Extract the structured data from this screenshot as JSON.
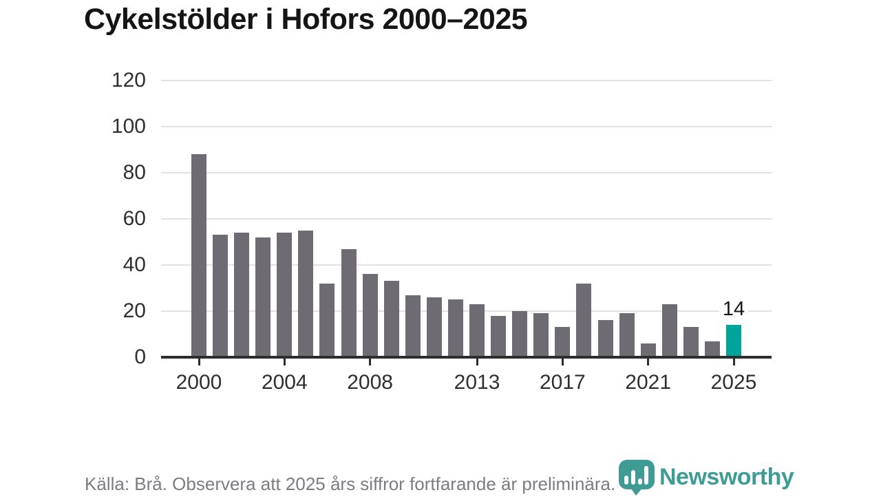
{
  "title": "Cykelstölder i Hofors 2000–2025",
  "footer": {
    "source_note": "Källa: Brå. Observera att 2025 års siffror fortfarande är preliminära."
  },
  "logo": {
    "wordmark": "Newsworthy",
    "icon": "bar-chart-pin-icon",
    "color": "#3E9C95"
  },
  "colors": {
    "bar": "#6E6B72",
    "highlight_bar": "#00A49B",
    "gridline": "#E1E1E1",
    "axis": "#2D2D2D",
    "tick_label": "#2F2F2F",
    "title_text": "#151515",
    "footer_text": "#7C7B83"
  },
  "chart_data": {
    "type": "bar",
    "title": "Cykelstölder i Hofors 2000–2025",
    "xlabel": "",
    "ylabel": "",
    "categories": [
      2000,
      2001,
      2002,
      2003,
      2004,
      2005,
      2006,
      2007,
      2008,
      2009,
      2010,
      2011,
      2012,
      2013,
      2014,
      2015,
      2016,
      2017,
      2018,
      2019,
      2020,
      2021,
      2022,
      2023,
      2024,
      2025
    ],
    "values": [
      88,
      53,
      54,
      52,
      54,
      55,
      32,
      47,
      36,
      33,
      27,
      26,
      25,
      23,
      18,
      20,
      19,
      13,
      32,
      16,
      19,
      6,
      23,
      13,
      7,
      14
    ],
    "ylim": [
      0,
      120
    ],
    "yticks": [
      0,
      20,
      40,
      60,
      80,
      100,
      120
    ],
    "xticks": [
      2000,
      2004,
      2008,
      2013,
      2017,
      2021,
      2025
    ],
    "grid": true,
    "legend": "none",
    "highlight_last_bar": true,
    "last_bar_value_label": "14"
  }
}
